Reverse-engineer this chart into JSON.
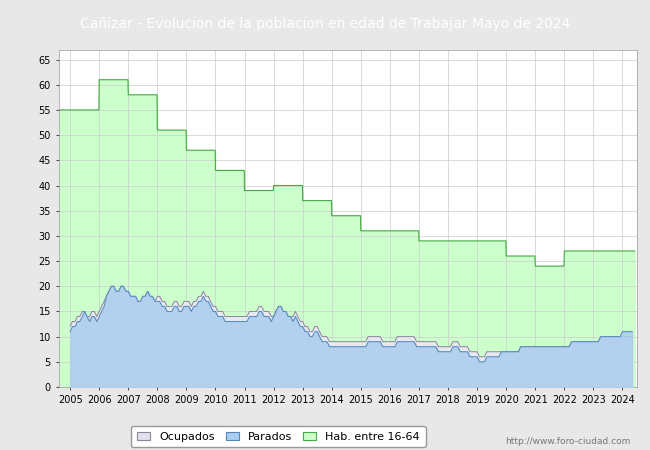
{
  "title": "Cañizar - Evolucion de la poblacion en edad de Trabajar Mayo de 2024",
  "title_bg": "#4472c4",
  "title_color": "white",
  "ylim": [
    0,
    67
  ],
  "yticks": [
    0,
    5,
    10,
    15,
    20,
    25,
    30,
    35,
    40,
    45,
    50,
    55,
    60,
    65
  ],
  "xlim": [
    2004.6,
    2024.5
  ],
  "xticks": [
    2005,
    2006,
    2007,
    2008,
    2009,
    2010,
    2011,
    2012,
    2013,
    2014,
    2015,
    2016,
    2017,
    2018,
    2019,
    2020,
    2021,
    2022,
    2023,
    2024
  ],
  "watermark": "http://www.foro-ciudad.com",
  "hab_color": "#ccffcc",
  "hab_line_color": "#44aa44",
  "ocup_color": "#e8e8f0",
  "ocup_line_color": "#888899",
  "parados_color": "#aaccee",
  "parados_line_color": "#5588bb",
  "background_color": "#e8e8e8",
  "plot_bg": "#ffffff",
  "grid_color": "#cccccc",
  "hab_years": [
    2005,
    2006,
    2007,
    2008,
    2009,
    2010,
    2011,
    2012,
    2013,
    2014,
    2015,
    2016,
    2017,
    2018,
    2019,
    2020,
    2021,
    2022,
    2023,
    2024
  ],
  "hab_values": [
    55,
    61,
    58,
    51,
    47,
    43,
    39,
    40,
    37,
    34,
    31,
    31,
    29,
    29,
    29,
    26,
    24,
    27,
    27,
    27
  ],
  "ocup_monthly_x": [
    2005.0,
    2005.08,
    2005.17,
    2005.25,
    2005.33,
    2005.42,
    2005.5,
    2005.58,
    2005.67,
    2005.75,
    2005.83,
    2005.92,
    2006.0,
    2006.08,
    2006.17,
    2006.25,
    2006.33,
    2006.42,
    2006.5,
    2006.58,
    2006.67,
    2006.75,
    2006.83,
    2006.92,
    2007.0,
    2007.08,
    2007.17,
    2007.25,
    2007.33,
    2007.42,
    2007.5,
    2007.58,
    2007.67,
    2007.75,
    2007.83,
    2007.92,
    2008.0,
    2008.08,
    2008.17,
    2008.25,
    2008.33,
    2008.42,
    2008.5,
    2008.58,
    2008.67,
    2008.75,
    2008.83,
    2008.92,
    2009.0,
    2009.08,
    2009.17,
    2009.25,
    2009.33,
    2009.42,
    2009.5,
    2009.58,
    2009.67,
    2009.75,
    2009.83,
    2009.92,
    2010.0,
    2010.08,
    2010.17,
    2010.25,
    2010.33,
    2010.42,
    2010.5,
    2010.58,
    2010.67,
    2010.75,
    2010.83,
    2010.92,
    2011.0,
    2011.08,
    2011.17,
    2011.25,
    2011.33,
    2011.42,
    2011.5,
    2011.58,
    2011.67,
    2011.75,
    2011.83,
    2011.92,
    2012.0,
    2012.08,
    2012.17,
    2012.25,
    2012.33,
    2012.42,
    2012.5,
    2012.58,
    2012.67,
    2012.75,
    2012.83,
    2012.92,
    2013.0,
    2013.08,
    2013.17,
    2013.25,
    2013.33,
    2013.42,
    2013.5,
    2013.58,
    2013.67,
    2013.75,
    2013.83,
    2013.92,
    2014.0,
    2014.08,
    2014.17,
    2014.25,
    2014.33,
    2014.42,
    2014.5,
    2014.58,
    2014.67,
    2014.75,
    2014.83,
    2014.92,
    2015.0,
    2015.08,
    2015.17,
    2015.25,
    2015.33,
    2015.42,
    2015.5,
    2015.58,
    2015.67,
    2015.75,
    2015.83,
    2015.92,
    2016.0,
    2016.08,
    2016.17,
    2016.25,
    2016.33,
    2016.42,
    2016.5,
    2016.58,
    2016.67,
    2016.75,
    2016.83,
    2016.92,
    2017.0,
    2017.08,
    2017.17,
    2017.25,
    2017.33,
    2017.42,
    2017.5,
    2017.58,
    2017.67,
    2017.75,
    2017.83,
    2017.92,
    2018.0,
    2018.08,
    2018.17,
    2018.25,
    2018.33,
    2018.42,
    2018.5,
    2018.58,
    2018.67,
    2018.75,
    2018.83,
    2018.92,
    2019.0,
    2019.08,
    2019.17,
    2019.25,
    2019.33,
    2019.42,
    2019.5,
    2019.58,
    2019.67,
    2019.75,
    2019.83,
    2019.92,
    2020.0,
    2020.08,
    2020.17,
    2020.25,
    2020.33,
    2020.42,
    2020.5,
    2020.58,
    2020.67,
    2020.75,
    2020.83,
    2020.92,
    2021.0,
    2021.08,
    2021.17,
    2021.25,
    2021.33,
    2021.42,
    2021.5,
    2021.58,
    2021.67,
    2021.75,
    2021.83,
    2021.92,
    2022.0,
    2022.08,
    2022.17,
    2022.25,
    2022.33,
    2022.42,
    2022.5,
    2022.58,
    2022.67,
    2022.75,
    2022.83,
    2022.92,
    2023.0,
    2023.08,
    2023.17,
    2023.25,
    2023.33,
    2023.42,
    2023.5,
    2023.58,
    2023.67,
    2023.75,
    2023.83,
    2023.92,
    2024.0,
    2024.08,
    2024.17,
    2024.25,
    2024.33
  ],
  "ocup_monthly_y": [
    12,
    13,
    13,
    14,
    14,
    15,
    15,
    14,
    14,
    15,
    15,
    14,
    15,
    16,
    17,
    18,
    19,
    20,
    20,
    19,
    19,
    20,
    20,
    19,
    19,
    18,
    18,
    18,
    17,
    17,
    18,
    18,
    19,
    18,
    18,
    17,
    18,
    18,
    17,
    17,
    16,
    16,
    16,
    17,
    17,
    16,
    16,
    17,
    17,
    17,
    16,
    17,
    17,
    18,
    18,
    19,
    18,
    18,
    17,
    16,
    16,
    15,
    15,
    15,
    14,
    14,
    14,
    14,
    14,
    14,
    14,
    14,
    14,
    14,
    15,
    15,
    15,
    15,
    16,
    16,
    15,
    15,
    15,
    14,
    14,
    15,
    16,
    16,
    15,
    15,
    14,
    14,
    14,
    15,
    14,
    13,
    13,
    12,
    12,
    11,
    11,
    12,
    12,
    11,
    10,
    10,
    10,
    9,
    9,
    9,
    9,
    9,
    9,
    9,
    9,
    9,
    9,
    9,
    9,
    9,
    9,
    9,
    9,
    10,
    10,
    10,
    10,
    10,
    10,
    9,
    9,
    9,
    9,
    9,
    9,
    10,
    10,
    10,
    10,
    10,
    10,
    10,
    10,
    9,
    9,
    9,
    9,
    9,
    9,
    9,
    9,
    9,
    8,
    8,
    8,
    8,
    8,
    8,
    9,
    9,
    9,
    8,
    8,
    8,
    8,
    7,
    7,
    7,
    7,
    6,
    6,
    6,
    7,
    7,
    7,
    7,
    7,
    7,
    7,
    7,
    7,
    7,
    7,
    7,
    7,
    7,
    8,
    8,
    8,
    8,
    8,
    8,
    8,
    8,
    8,
    8,
    8,
    8,
    8,
    8,
    8,
    8,
    8,
    8,
    8,
    8,
    8,
    9,
    9,
    9,
    9,
    9,
    9,
    9,
    9,
    9,
    9,
    9,
    9,
    10,
    10,
    10,
    10,
    10,
    10,
    10,
    10,
    10,
    10,
    10,
    10,
    10,
    10
  ],
  "par_monthly_y": [
    11,
    12,
    12,
    13,
    13,
    14,
    15,
    14,
    13,
    14,
    14,
    13,
    14,
    15,
    16,
    18,
    19,
    20,
    20,
    19,
    19,
    20,
    20,
    19,
    19,
    18,
    18,
    18,
    17,
    17,
    18,
    18,
    19,
    18,
    18,
    17,
    17,
    17,
    16,
    16,
    15,
    15,
    15,
    16,
    16,
    15,
    15,
    16,
    16,
    16,
    15,
    16,
    16,
    17,
    17,
    18,
    17,
    17,
    16,
    15,
    15,
    14,
    14,
    14,
    13,
    13,
    13,
    13,
    13,
    13,
    13,
    13,
    13,
    13,
    14,
    14,
    14,
    14,
    15,
    15,
    14,
    14,
    14,
    13,
    14,
    15,
    16,
    16,
    15,
    15,
    14,
    14,
    13,
    14,
    13,
    12,
    12,
    11,
    11,
    10,
    10,
    11,
    11,
    10,
    9,
    9,
    9,
    8,
    8,
    8,
    8,
    8,
    8,
    8,
    8,
    8,
    8,
    8,
    8,
    8,
    8,
    8,
    8,
    9,
    9,
    9,
    9,
    9,
    9,
    8,
    8,
    8,
    8,
    8,
    8,
    9,
    9,
    9,
    9,
    9,
    9,
    9,
    9,
    8,
    8,
    8,
    8,
    8,
    8,
    8,
    8,
    8,
    7,
    7,
    7,
    7,
    7,
    7,
    8,
    8,
    8,
    7,
    7,
    7,
    7,
    6,
    6,
    6,
    6,
    5,
    5,
    5,
    6,
    6,
    6,
    6,
    6,
    6,
    7,
    7,
    7,
    7,
    7,
    7,
    7,
    7,
    8,
    8,
    8,
    8,
    8,
    8,
    8,
    8,
    8,
    8,
    8,
    8,
    8,
    8,
    8,
    8,
    8,
    8,
    8,
    8,
    8,
    9,
    9,
    9,
    9,
    9,
    9,
    9,
    9,
    9,
    9,
    9,
    9,
    10,
    10,
    10,
    10,
    10,
    10,
    10,
    10,
    10,
    11,
    11,
    11,
    11,
    11
  ],
  "legend_labels": [
    "Ocupados",
    "Parados",
    "Hab. entre 16-64"
  ],
  "legend_colors_fill": [
    "#e0e0ee",
    "#aaccee",
    "#ccffcc"
  ],
  "legend_colors_edge": [
    "#888899",
    "#5588bb",
    "#44aa44"
  ]
}
